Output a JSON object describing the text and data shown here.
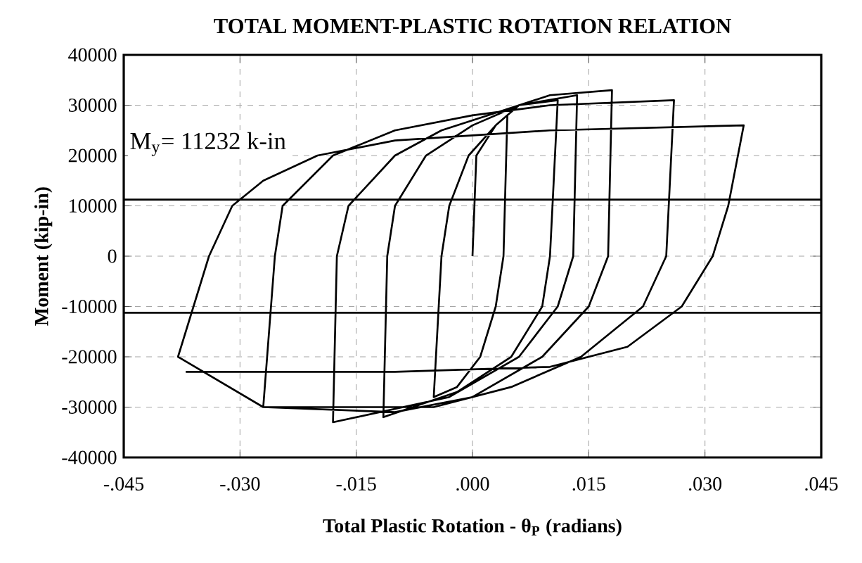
{
  "chart_data": {
    "type": "line",
    "title": "TOTAL MOMENT-PLASTIC ROTATION RELATION",
    "xlabel": "Total Plastic Rotation - θ$_{P}$ (radians)",
    "ylabel": "Moment (kip-in)",
    "series": [
      {
        "color": "#000000",
        "x": [
          0.0,
          0.0005,
          0.003,
          0.0045,
          0.004,
          0.003,
          0.001,
          -0.002,
          -0.005,
          -0.004,
          -0.003,
          -0.0005,
          0.003,
          0.006,
          0.011,
          0.01,
          0.009,
          0.005,
          -0.002,
          -0.0115,
          -0.011,
          -0.01,
          -0.006,
          0.0,
          0.006,
          0.0135,
          0.013,
          0.011,
          0.006,
          -0.003,
          -0.018,
          -0.0175,
          -0.016,
          -0.01,
          -0.004,
          0.004,
          0.01,
          0.018,
          0.0175,
          0.015,
          0.009,
          0.0,
          -0.01,
          -0.027,
          -0.0255,
          -0.0245,
          -0.018,
          -0.01,
          0.0,
          0.01,
          0.026,
          0.025,
          0.022,
          0.014,
          0.005,
          -0.005,
          -0.027,
          -0.038,
          -0.034,
          -0.031,
          -0.027,
          -0.02,
          -0.01,
          0.01,
          0.035,
          0.033,
          0.031,
          0.027,
          0.02,
          0.01,
          -0.01,
          -0.037
        ],
        "values": [
          0,
          20000,
          26000,
          28000,
          0,
          -10000,
          -20000,
          -26000,
          -28000,
          0,
          10000,
          20000,
          26000,
          30000,
          31000,
          0,
          -10000,
          -20000,
          -27000,
          -32000,
          0,
          10000,
          20000,
          26000,
          30000,
          32000,
          0,
          -10000,
          -20000,
          -28000,
          -33000,
          0,
          10000,
          20000,
          25000,
          29000,
          32000,
          33000,
          0,
          -10000,
          -20000,
          -28000,
          -31000,
          -30000,
          0,
          10000,
          20000,
          25000,
          28000,
          30000,
          31000,
          0,
          -10000,
          -20000,
          -26000,
          -30000,
          -30000,
          -20000,
          0,
          10000,
          15000,
          20000,
          23000,
          25000,
          26000,
          10000,
          0,
          -10000,
          -18000,
          -22000,
          -23000,
          -23000
        ]
      }
    ],
    "xlim": [
      -0.045,
      0.045
    ],
    "xticks": [
      {
        "value": -0.045,
        "label": "-.045"
      },
      {
        "value": -0.03,
        "label": "-.030"
      },
      {
        "value": -0.015,
        "label": "-.015"
      },
      {
        "value": 0,
        "label": ".000"
      },
      {
        "value": 0.015,
        "label": ".015"
      },
      {
        "value": 0.03,
        "label": ".030"
      },
      {
        "value": 0.045,
        "label": ".045"
      }
    ],
    "ylim": [
      -40000,
      40000
    ],
    "yticks": [
      -40000,
      -30000,
      -20000,
      -10000,
      0,
      10000,
      20000,
      30000,
      40000
    ],
    "ref_lines": [
      {
        "axis": "y",
        "value": 11232,
        "label": "M$_{y}$= 11232 k-in",
        "color": "#000000"
      },
      {
        "axis": "y",
        "value": -11232,
        "color": "#000000"
      }
    ],
    "grid": true,
    "marker": "none",
    "line_style": "solid"
  }
}
